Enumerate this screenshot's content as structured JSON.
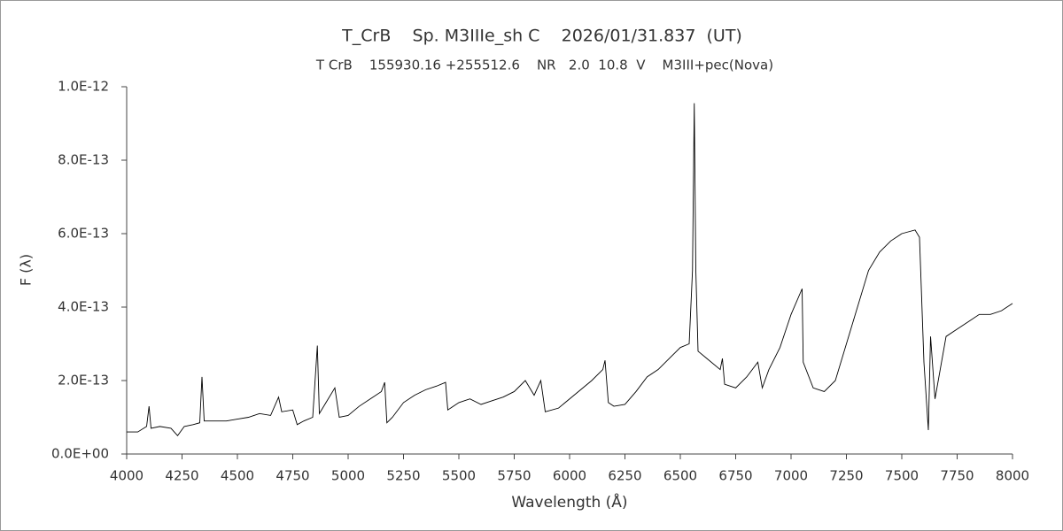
{
  "chart_data": {
    "type": "line",
    "title": "T_CrB    Sp. M3IIIe_sh C    2026/01/31.837  (UT)",
    "subtitle": "T CrB    155930.16 +255512.6    NR   2.0  10.8  V    M3III+pec(Nova)",
    "x_label": "Wavelength (Å)",
    "y_label": "F (λ)",
    "xlim": [
      4000,
      8000
    ],
    "xticks": [
      4000,
      4250,
      4500,
      4750,
      5000,
      5250,
      5500,
      5750,
      6000,
      6250,
      6500,
      6750,
      7000,
      7250,
      7500,
      7750,
      8000
    ],
    "ylim": [
      0,
      1e-12
    ],
    "yticks": [
      {
        "value": 0,
        "label": "0.0E+00"
      },
      {
        "value": 2e-13,
        "label": "2.0E-13"
      },
      {
        "value": 4e-13,
        "label": "4.0E-13"
      },
      {
        "value": 6e-13,
        "label": "6.0E-13"
      },
      {
        "value": 8e-13,
        "label": "8.0E-13"
      },
      {
        "value": 1e-12,
        "label": "1.0E-12"
      }
    ],
    "series": [
      {
        "color": "#000000",
        "x": [
          4000,
          4050,
          4090,
          4101,
          4110,
          4150,
          4200,
          4230,
          4260,
          4300,
          4330,
          4340,
          4350,
          4400,
          4450,
          4500,
          4550,
          4600,
          4650,
          4686,
          4700,
          4750,
          4770,
          4800,
          4840,
          4861,
          4870,
          4900,
          4940,
          4960,
          5000,
          5050,
          5100,
          5150,
          5165,
          5175,
          5200,
          5250,
          5300,
          5350,
          5400,
          5440,
          5450,
          5500,
          5550,
          5600,
          5650,
          5700,
          5750,
          5800,
          5840,
          5870,
          5890,
          5950,
          6000,
          6050,
          6100,
          6150,
          6160,
          6175,
          6200,
          6250,
          6300,
          6350,
          6400,
          6450,
          6500,
          6540,
          6555,
          6563,
          6570,
          6580,
          6620,
          6680,
          6690,
          6700,
          6750,
          6800,
          6850,
          6870,
          6900,
          6950,
          7000,
          7050,
          7055,
          7100,
          7150,
          7200,
          7250,
          7300,
          7350,
          7400,
          7450,
          7500,
          7560,
          7580,
          7600,
          7620,
          7630,
          7650,
          7700,
          7750,
          7800,
          7850,
          7900,
          7950,
          8000
        ],
        "values": [
          6e-14,
          6e-14,
          7.5e-14,
          1.3e-13,
          7e-14,
          7.5e-14,
          7e-14,
          5e-14,
          7.5e-14,
          8e-14,
          8.5e-14,
          2.1e-13,
          9e-14,
          9e-14,
          9e-14,
          9.5e-14,
          1e-13,
          1.1e-13,
          1.05e-13,
          1.55e-13,
          1.15e-13,
          1.2e-13,
          8e-14,
          9e-14,
          1e-13,
          2.95e-13,
          1.1e-13,
          1.4e-13,
          1.8e-13,
          1e-13,
          1.05e-13,
          1.3e-13,
          1.5e-13,
          1.7e-13,
          1.95e-13,
          8.5e-14,
          1e-13,
          1.4e-13,
          1.6e-13,
          1.75e-13,
          1.85e-13,
          1.95e-13,
          1.2e-13,
          1.4e-13,
          1.5e-13,
          1.35e-13,
          1.45e-13,
          1.55e-13,
          1.7e-13,
          2e-13,
          1.6e-13,
          2e-13,
          1.15e-13,
          1.25e-13,
          1.5e-13,
          1.75e-13,
          2e-13,
          2.3e-13,
          2.55e-13,
          1.4e-13,
          1.3e-13,
          1.35e-13,
          1.7e-13,
          2.1e-13,
          2.3e-13,
          2.6e-13,
          2.9e-13,
          3e-13,
          5e-13,
          9.55e-13,
          5e-13,
          2.8e-13,
          2.6e-13,
          2.3e-13,
          2.6e-13,
          1.9e-13,
          1.8e-13,
          2.1e-13,
          2.5e-13,
          1.8e-13,
          2.3e-13,
          2.9e-13,
          3.8e-13,
          4.5e-13,
          2.5e-13,
          1.8e-13,
          1.7e-13,
          2e-13,
          3e-13,
          4e-13,
          5e-13,
          5.5e-13,
          5.8e-13,
          6e-13,
          6.1e-13,
          5.9e-13,
          2.5e-13,
          6.5e-14,
          3.2e-13,
          1.5e-13,
          3.2e-13,
          3.4e-13,
          3.6e-13,
          3.8e-13,
          3.8e-13,
          3.9e-13,
          4.1e-13
        ]
      }
    ]
  }
}
